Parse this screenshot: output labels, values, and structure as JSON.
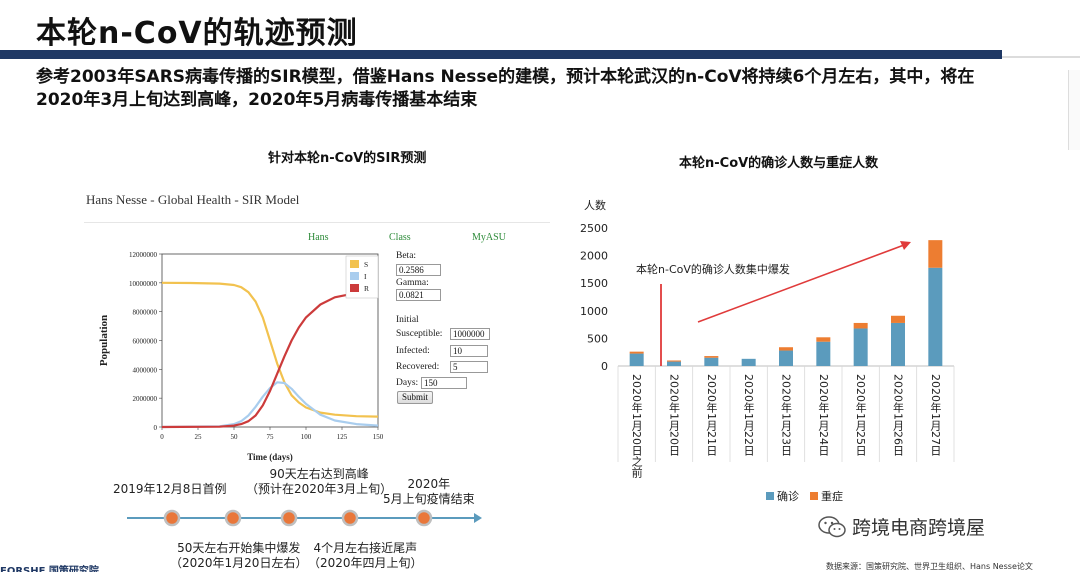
{
  "slide": {
    "title": "本轮n-CoV的轨迹预测",
    "subtitle": "参考2003年SARS病毒传播的SIR模型，借鉴Hans Nesse的建模，预计本轮武汉的n-CoV将持续6个月左右，其中，将在2020年3月上旬达到高峰，2020年5月病毒传播基本结束",
    "left_heading": "针对本轮n-CoV的SIR预测",
    "right_heading": "本轮n-CoV的确诊人数与重症人数",
    "watermark": "跨境电商跨境屋",
    "source": "数据来源：国策研究院、世界卫生组织、Hans Nesse论文",
    "bottom_logo": "FORSHE 国策研究院"
  },
  "sir": {
    "panel_title": "Hans Nesse - Global Health - SIR Model",
    "nav": [
      "Hans",
      "Class",
      "MyASU"
    ],
    "params": {
      "beta_label": "Beta:",
      "beta": "0.2586",
      "gamma_label": "Gamma:",
      "gamma": "0.0821",
      "initial_label": "Initial",
      "susceptible_label": "Susceptible:",
      "susceptible": "1000000",
      "infected_label": "Infected:",
      "infected": "10",
      "recovered_label": "Recovered:",
      "recovered": "5",
      "days_label": "Days:",
      "days": "150",
      "submit": "Submit"
    }
  },
  "timeline": {
    "top_labels": [
      "2019年12月8日首例",
      "90天左右达到高峰\n（预计在2020年3月上旬）",
      "2020年\n5月上旬疫情结束"
    ],
    "bottom_labels": [
      "50天左右开始集中爆发\n（2020年1月20日左右）",
      "4个月左右接近尾声\n（2020年四月上旬）"
    ]
  },
  "chart_data": [
    {
      "type": "line",
      "title": "",
      "xlabel": "Time (days)",
      "ylabel": "Population",
      "xlim": [
        0,
        150
      ],
      "ylim": [
        0,
        12000000
      ],
      "xticks": [
        0,
        25,
        50,
        75,
        100,
        125,
        150
      ],
      "yticks": [
        0,
        2000000,
        4000000,
        6000000,
        8000000,
        10000000,
        12000000
      ],
      "legend": "top-right",
      "series": [
        {
          "name": "S",
          "color": "#f2c24f",
          "x": [
            0,
            20,
            40,
            50,
            55,
            60,
            65,
            70,
            75,
            80,
            85,
            90,
            95,
            100,
            110,
            120,
            135,
            150
          ],
          "values": [
            10000000,
            9990000,
            9950000,
            9850000,
            9700000,
            9350000,
            8700000,
            7600000,
            6000000,
            4400000,
            3100000,
            2200000,
            1700000,
            1350000,
            1000000,
            850000,
            750000,
            720000
          ]
        },
        {
          "name": "I",
          "color": "#a9cdee",
          "x": [
            0,
            40,
            50,
            55,
            60,
            65,
            70,
            75,
            80,
            85,
            90,
            95,
            100,
            110,
            120,
            135,
            150
          ],
          "values": [
            10,
            50000,
            200000,
            400000,
            800000,
            1400000,
            2100000,
            2700000,
            3100000,
            3050000,
            2650000,
            2100000,
            1600000,
            850000,
            450000,
            200000,
            100000
          ]
        },
        {
          "name": "R",
          "color": "#cc3b3b",
          "x": [
            0,
            40,
            50,
            55,
            60,
            65,
            70,
            75,
            80,
            85,
            90,
            95,
            100,
            110,
            120,
            130,
            150
          ],
          "values": [
            5,
            20000,
            100000,
            200000,
            400000,
            800000,
            1500000,
            2500000,
            3700000,
            4900000,
            6000000,
            6900000,
            7600000,
            8500000,
            9000000,
            9200000,
            9300000
          ]
        }
      ]
    },
    {
      "type": "bar",
      "title": "",
      "ylabel": "人数",
      "ylim": [
        0,
        2500
      ],
      "yticks": [
        0,
        500,
        1000,
        1500,
        2000,
        2500
      ],
      "categories": [
        "2020年1月20日之前",
        "2020年1月20日",
        "2020年1月21日",
        "2020年1月22日",
        "2020年1月23日",
        "2020年1月24日",
        "2020年1月25日",
        "2020年1月26日",
        "2020年1月27日"
      ],
      "stacked": true,
      "legend": "bottom",
      "series": [
        {
          "name": "确诊",
          "color": "#5b9bbd",
          "values": [
            225,
            80,
            150,
            130,
            280,
            440,
            680,
            780,
            1780
          ]
        },
        {
          "name": "重症",
          "color": "#ed7d31",
          "values": [
            35,
            20,
            30,
            0,
            60,
            80,
            100,
            130,
            500
          ]
        }
      ],
      "annotation": "本轮n-CoV的确诊人数集中爆发"
    }
  ]
}
